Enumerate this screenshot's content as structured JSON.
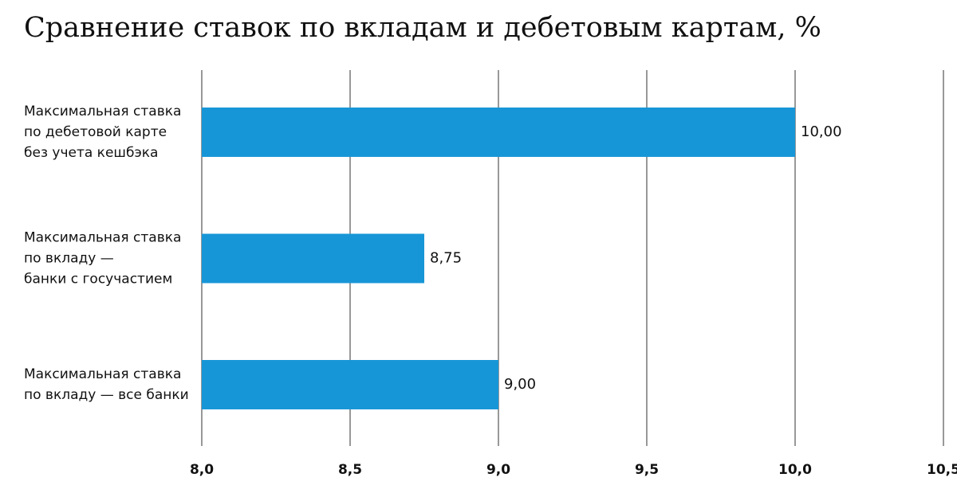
{
  "chart_data": {
    "type": "hbar",
    "title": "Сравнение ставок по вкладам и дебетовым картам, %",
    "categories": [
      [
        "Максимальная ставка",
        "по дебетовой карте",
        "без учета кешбэка"
      ],
      [
        "Максимальная ставка",
        "по вкладу —",
        "банки с госучастием"
      ],
      [
        "Максимальная ставка",
        "по вкладу — все банки"
      ]
    ],
    "values": [
      10,
      8.75,
      9
    ],
    "value_labels": [
      "10,00",
      "8,75",
      "9,00"
    ],
    "color": "#1796d7",
    "xlim": [
      8,
      10.5
    ],
    "xticks": [
      {
        "value": 8,
        "label": "8,0"
      },
      {
        "value": 8.5,
        "label": "8,5"
      },
      {
        "value": 9,
        "label": "9,0"
      },
      {
        "value": 9.5,
        "label": "9,5"
      },
      {
        "value": 10,
        "label": "10,0"
      },
      {
        "value": 10.5,
        "label": "10,5"
      }
    ],
    "grid": true
  }
}
